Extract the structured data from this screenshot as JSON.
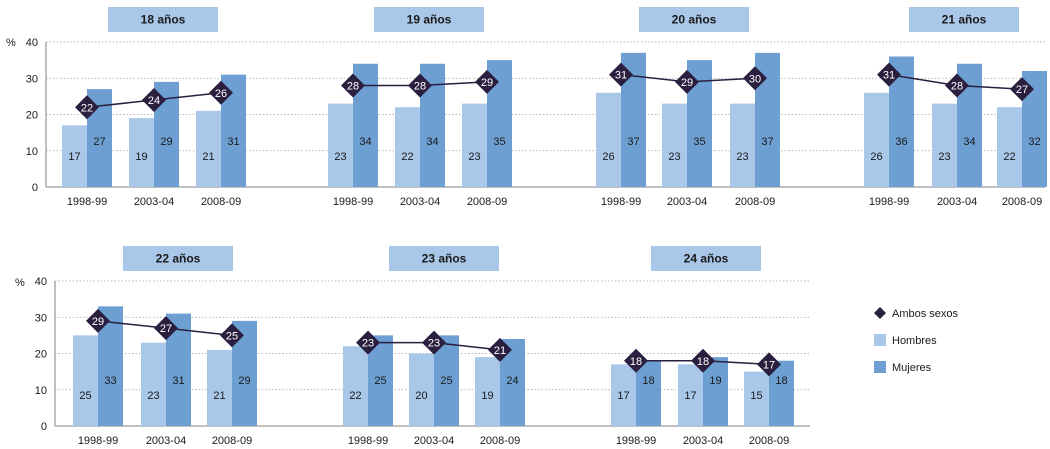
{
  "colors": {
    "hombres": "#a9c7e8",
    "mujeres": "#6d9fd3",
    "ambos": "#2a1f3e",
    "title_bg": "#a9c7e8"
  },
  "chart_data": {
    "type": "bar",
    "y_unit_label": "%",
    "ylim": [
      0,
      40
    ],
    "yticks": [
      "0",
      "10",
      "20",
      "30",
      "40"
    ],
    "grid": true,
    "legend_placement": "right",
    "legend": [
      {
        "key": "ambos",
        "label": "Ambos sexos",
        "marker": "diamond"
      },
      {
        "key": "hombres",
        "label": "Hombres",
        "marker": "square"
      },
      {
        "key": "mujeres",
        "label": "Mujeres",
        "marker": "square"
      }
    ],
    "panels": [
      {
        "title": "18 años",
        "categories": [
          "1998-99",
          "2003-04",
          "2008-09"
        ],
        "series": [
          {
            "name": "Hombres",
            "type": "bar",
            "values": [
              17,
              19,
              21
            ]
          },
          {
            "name": "Mujeres",
            "type": "bar",
            "values": [
              27,
              29,
              31
            ]
          },
          {
            "name": "Ambos sexos",
            "type": "line",
            "values": [
              22,
              24,
              26
            ]
          }
        ]
      },
      {
        "title": "19 años",
        "categories": [
          "1998-99",
          "2003-04",
          "2008-09"
        ],
        "series": [
          {
            "name": "Hombres",
            "type": "bar",
            "values": [
              23,
              22,
              23
            ]
          },
          {
            "name": "Mujeres",
            "type": "bar",
            "values": [
              34,
              34,
              35
            ]
          },
          {
            "name": "Ambos sexos",
            "type": "line",
            "values": [
              28,
              28,
              29
            ]
          }
        ]
      },
      {
        "title": "20 años",
        "categories": [
          "1998-99",
          "2003-04",
          "2008-09"
        ],
        "series": [
          {
            "name": "Hombres",
            "type": "bar",
            "values": [
              26,
              23,
              23
            ]
          },
          {
            "name": "Mujeres",
            "type": "bar",
            "values": [
              37,
              35,
              37
            ]
          },
          {
            "name": "Ambos sexos",
            "type": "line",
            "values": [
              31,
              29,
              30
            ]
          }
        ]
      },
      {
        "title": "21 años",
        "categories": [
          "1998-99",
          "2003-04",
          "2008-09"
        ],
        "series": [
          {
            "name": "Hombres",
            "type": "bar",
            "values": [
              26,
              23,
              22
            ]
          },
          {
            "name": "Mujeres",
            "type": "bar",
            "values": [
              36,
              34,
              32
            ]
          },
          {
            "name": "Ambos sexos",
            "type": "line",
            "values": [
              31,
              28,
              27
            ]
          }
        ]
      },
      {
        "title": "22 años",
        "categories": [
          "1998-99",
          "2003-04",
          "2008-09"
        ],
        "series": [
          {
            "name": "Hombres",
            "type": "bar",
            "values": [
              25,
              23,
              21
            ]
          },
          {
            "name": "Mujeres",
            "type": "bar",
            "values": [
              33,
              31,
              29
            ]
          },
          {
            "name": "Ambos sexos",
            "type": "line",
            "values": [
              29,
              27,
              25
            ]
          }
        ]
      },
      {
        "title": "23 años",
        "categories": [
          "1998-99",
          "2003-04",
          "2008-09"
        ],
        "series": [
          {
            "name": "Hombres",
            "type": "bar",
            "values": [
              22,
              20,
              19
            ]
          },
          {
            "name": "Mujeres",
            "type": "bar",
            "values": [
              25,
              25,
              24
            ]
          },
          {
            "name": "Ambos sexos",
            "type": "line",
            "values": [
              23,
              23,
              21
            ]
          }
        ]
      },
      {
        "title": "24 años",
        "categories": [
          "1998-99",
          "2003-04",
          "2008-09"
        ],
        "series": [
          {
            "name": "Hombres",
            "type": "bar",
            "values": [
              17,
              17,
              15
            ]
          },
          {
            "name": "Mujeres",
            "type": "bar",
            "values": [
              18,
              19,
              18
            ]
          },
          {
            "name": "Ambos sexos",
            "type": "line",
            "values": [
              18,
              18,
              17
            ]
          }
        ]
      }
    ]
  }
}
